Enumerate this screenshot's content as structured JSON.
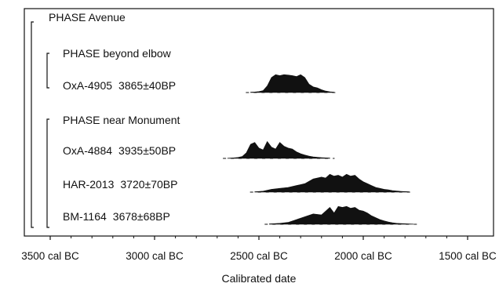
{
  "chart_data": {
    "type": "area",
    "title": "",
    "xlabel": "Calibrated date",
    "ylabel": "",
    "xlim": [
      3500,
      1500
    ],
    "x_unit": "cal BC",
    "x_ticks": [
      {
        "value": 3500,
        "label": "3500 cal BC"
      },
      {
        "value": 3000,
        "label": "3000 cal BC"
      },
      {
        "value": 2500,
        "label": "2500 cal BC"
      },
      {
        "value": 2000,
        "label": "2000 cal BC"
      },
      {
        "value": 1500,
        "label": "1500 cal BC"
      }
    ],
    "grid": false,
    "groups": [
      {
        "label": "PHASE Avenue",
        "level": 0
      },
      {
        "label": "PHASE beyond elbow",
        "level": 1
      },
      {
        "label": "PHASE near Monument",
        "level": 1
      }
    ],
    "series": [
      {
        "name": "OxA-4905",
        "label": "3865±40BP",
        "group": "PHASE beyond elbow",
        "x": [
          2540,
          2520,
          2500,
          2480,
          2460,
          2440,
          2420,
          2400,
          2380,
          2360,
          2340,
          2320,
          2300,
          2280,
          2260,
          2240,
          2220,
          2200,
          2180,
          2160,
          2140
        ],
        "y": [
          0.02,
          0.03,
          0.05,
          0.1,
          0.35,
          0.8,
          0.95,
          0.9,
          0.95,
          0.93,
          0.9,
          0.85,
          0.95,
          0.8,
          0.45,
          0.3,
          0.25,
          0.15,
          0.08,
          0.04,
          0.02
        ]
      },
      {
        "name": "OxA-4884",
        "label": "3935±50BP",
        "group": "PHASE near Monument",
        "x": [
          2650,
          2620,
          2600,
          2580,
          2560,
          2540,
          2520,
          2500,
          2480,
          2460,
          2440,
          2420,
          2400,
          2380,
          2360,
          2340,
          2320,
          2300,
          2280,
          2260,
          2240,
          2220,
          2200,
          2180,
          2160
        ],
        "y": [
          0.01,
          0.03,
          0.05,
          0.1,
          0.3,
          0.75,
          0.85,
          0.55,
          0.45,
          0.9,
          0.6,
          0.5,
          0.85,
          0.65,
          0.55,
          0.5,
          0.35,
          0.25,
          0.18,
          0.12,
          0.08,
          0.06,
          0.04,
          0.03,
          0.02
        ]
      },
      {
        "name": "HAR-2013",
        "label": "3720±70BP",
        "group": "PHASE near Monument",
        "x": [
          2520,
          2480,
          2440,
          2400,
          2360,
          2320,
          2280,
          2240,
          2200,
          2180,
          2160,
          2140,
          2120,
          2100,
          2080,
          2060,
          2040,
          2020,
          2000,
          1980,
          1960,
          1940,
          1920,
          1900,
          1880,
          1860,
          1840,
          1820,
          1800,
          1780
        ],
        "y": [
          0.02,
          0.05,
          0.15,
          0.2,
          0.25,
          0.35,
          0.45,
          0.7,
          0.8,
          0.75,
          0.95,
          0.85,
          0.9,
          0.8,
          0.95,
          0.85,
          0.9,
          0.7,
          0.55,
          0.45,
          0.35,
          0.25,
          0.2,
          0.15,
          0.12,
          0.08,
          0.06,
          0.04,
          0.03,
          0.02
        ]
      },
      {
        "name": "BM-1164",
        "label": "3678±68BP",
        "group": "PHASE near Monument",
        "x": [
          2450,
          2400,
          2360,
          2320,
          2280,
          2240,
          2200,
          2180,
          2160,
          2140,
          2120,
          2100,
          2080,
          2060,
          2040,
          2020,
          2000,
          1980,
          1960,
          1940,
          1920,
          1900,
          1880,
          1860,
          1840,
          1820,
          1800,
          1780,
          1760
        ],
        "y": [
          0.02,
          0.05,
          0.1,
          0.25,
          0.4,
          0.55,
          0.5,
          0.7,
          0.9,
          0.6,
          0.95,
          0.9,
          0.95,
          0.85,
          0.9,
          0.75,
          0.7,
          0.6,
          0.45,
          0.35,
          0.25,
          0.18,
          0.12,
          0.08,
          0.05,
          0.04,
          0.03,
          0.02,
          0.01
        ]
      }
    ]
  }
}
